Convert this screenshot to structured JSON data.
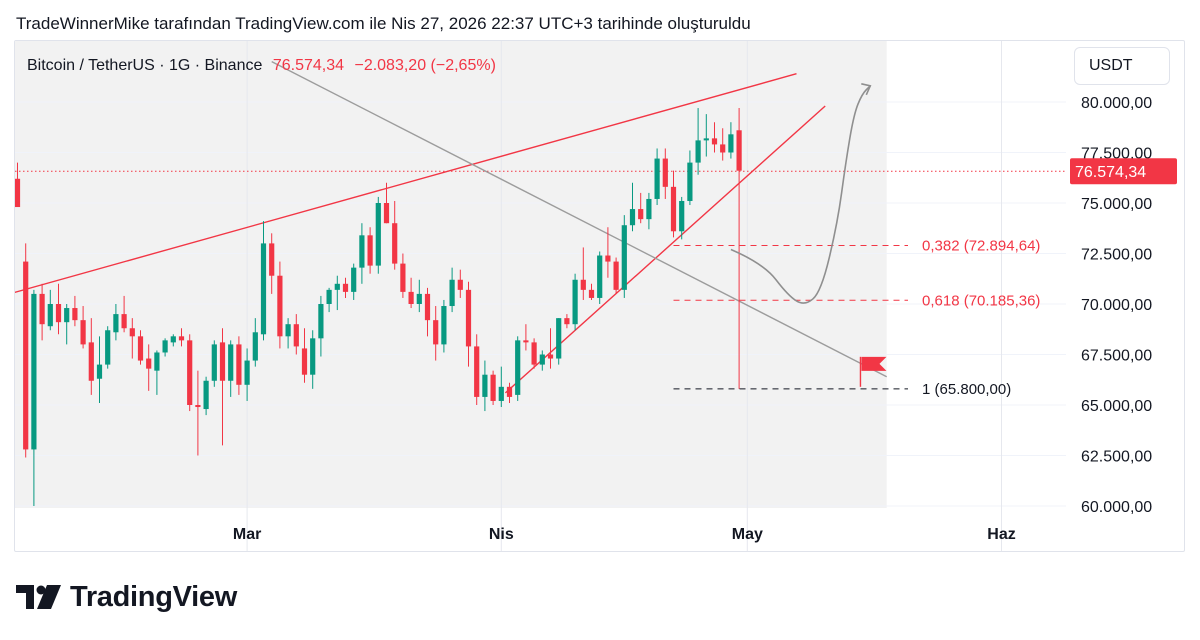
{
  "header": {
    "snapshot_note": "TradeWinnerMike tarafından TradingView.com ile Nis 27, 2026 22:37 UTC+3 tarihinde oluşturuldu"
  },
  "legend": {
    "symbol": "Bitcoin / TetherUS · 1G · Binance",
    "last": "76.574,34",
    "change": "−2.083,20 (−2,65%)"
  },
  "currency_button": "USDT",
  "brand": {
    "name": "TradingView"
  },
  "colors": {
    "up": "#089981",
    "down": "#f23645",
    "channel": "#f23645",
    "trendline": "#9c9c9c",
    "grid": "#f0f3fa"
  },
  "chart_data": {
    "type": "candlestick",
    "x_labels": [
      {
        "label": "Mar",
        "day": 28
      },
      {
        "label": "Nis",
        "day": 59
      },
      {
        "label": "May",
        "day": 89
      },
      {
        "label": "Haz",
        "day": 120
      }
    ],
    "y_ticks": [
      {
        "value": 80000,
        "label": "80.000,00"
      },
      {
        "value": 77500,
        "label": "77.500,00"
      },
      {
        "value": 75000,
        "label": "75.000,00"
      },
      {
        "value": 72500,
        "label": "72.500,00"
      },
      {
        "value": 70000,
        "label": "70.000,00"
      },
      {
        "value": 67500,
        "label": "67.500,00"
      },
      {
        "value": 65000,
        "label": "65.000,00"
      },
      {
        "value": 62500,
        "label": "62.500,00"
      },
      {
        "value": 60000,
        "label": "60.000,00"
      }
    ],
    "ylim": [
      59900,
      81900
    ],
    "xlim": [
      0,
      126
    ],
    "price_tag": {
      "value": 76574.34,
      "label": "76.574,34"
    },
    "fib_levels": [
      {
        "value": 72894.64,
        "label": "0,382 (72.894,64)",
        "style": "red"
      },
      {
        "value": 70185.36,
        "label": "0,618 (70.185,36)",
        "style": "red"
      },
      {
        "value": 65800.0,
        "label": "1 (65.800,00)",
        "style": "black"
      }
    ],
    "candles": [
      [
        0,
        76200,
        77000,
        74800,
        74800
      ],
      [
        1,
        72100,
        73000,
        62400,
        62800
      ],
      [
        2,
        62800,
        70700,
        60000,
        70500
      ],
      [
        3,
        70500,
        71000,
        68200,
        69000
      ],
      [
        4,
        68900,
        70700,
        68700,
        70000
      ],
      [
        5,
        70000,
        71000,
        68500,
        69100
      ],
      [
        6,
        69100,
        70000,
        68000,
        69800
      ],
      [
        7,
        69800,
        70400,
        68900,
        69200
      ],
      [
        8,
        69200,
        69900,
        67800,
        68000
      ],
      [
        9,
        68100,
        69300,
        65500,
        66200
      ],
      [
        10,
        66300,
        68400,
        65100,
        67000
      ],
      [
        11,
        67000,
        68900,
        66800,
        68700
      ],
      [
        12,
        68600,
        70000,
        68200,
        69500
      ],
      [
        13,
        69500,
        70400,
        68600,
        68800
      ],
      [
        14,
        68800,
        69300,
        67300,
        68400
      ],
      [
        15,
        68400,
        68700,
        67000,
        67200
      ],
      [
        16,
        67300,
        68000,
        65700,
        66800
      ],
      [
        17,
        66700,
        67700,
        65500,
        67600
      ],
      [
        18,
        67600,
        68300,
        67400,
        68200
      ],
      [
        19,
        68100,
        68500,
        67900,
        68400
      ],
      [
        20,
        68400,
        68800,
        67900,
        68200
      ],
      [
        21,
        68200,
        68500,
        64700,
        65000
      ],
      [
        22,
        65000,
        66700,
        62500,
        64900
      ],
      [
        23,
        64800,
        66400,
        64500,
        66200
      ],
      [
        24,
        66200,
        68200,
        65900,
        68000
      ],
      [
        25,
        68100,
        68800,
        63000,
        66200
      ],
      [
        26,
        66200,
        68200,
        65400,
        68000
      ],
      [
        27,
        68000,
        68400,
        65500,
        66000
      ],
      [
        28,
        66000,
        67800,
        65200,
        67200
      ],
      [
        29,
        67200,
        69300,
        66900,
        68600
      ],
      [
        30,
        68500,
        74100,
        68200,
        73000
      ],
      [
        31,
        73000,
        73500,
        70500,
        71400
      ],
      [
        32,
        71400,
        72100,
        67800,
        68400
      ],
      [
        33,
        68400,
        69300,
        67800,
        69000
      ],
      [
        34,
        69000,
        69500,
        67500,
        67900
      ],
      [
        35,
        67800,
        68800,
        66100,
        66500
      ],
      [
        36,
        66500,
        68700,
        65800,
        68300
      ],
      [
        37,
        68300,
        70400,
        67400,
        70000
      ],
      [
        38,
        70000,
        70800,
        69600,
        70700
      ],
      [
        39,
        70700,
        71400,
        69700,
        71000
      ],
      [
        40,
        71000,
        71300,
        70300,
        70600
      ],
      [
        41,
        70600,
        72000,
        70200,
        71800
      ],
      [
        42,
        71800,
        74000,
        71000,
        73400
      ],
      [
        43,
        73400,
        73800,
        71500,
        71900
      ],
      [
        44,
        71900,
        75300,
        71500,
        75000
      ],
      [
        45,
        75000,
        76000,
        74000,
        74000
      ],
      [
        46,
        74000,
        75100,
        71700,
        72000
      ],
      [
        47,
        72000,
        72500,
        70300,
        70600
      ],
      [
        48,
        70600,
        71300,
        69800,
        70000
      ],
      [
        49,
        70000,
        71200,
        69600,
        70500
      ],
      [
        50,
        70500,
        70800,
        68400,
        69200
      ],
      [
        51,
        69200,
        69900,
        67200,
        68000
      ],
      [
        52,
        68000,
        70200,
        67600,
        69900
      ],
      [
        53,
        69900,
        71800,
        69600,
        71200
      ],
      [
        54,
        71200,
        71700,
        70300,
        70700
      ],
      [
        55,
        70700,
        71100,
        66900,
        67900
      ],
      [
        56,
        67900,
        68500,
        65000,
        65400
      ],
      [
        57,
        65400,
        67200,
        64700,
        66500
      ],
      [
        58,
        66500,
        66700,
        65000,
        65200
      ],
      [
        59,
        65200,
        66900,
        64900,
        65900
      ],
      [
        60,
        65900,
        66100,
        65100,
        65400
      ],
      [
        61,
        65500,
        68400,
        65200,
        68200
      ],
      [
        62,
        68200,
        69000,
        67700,
        68100
      ],
      [
        63,
        68100,
        68300,
        66800,
        67000
      ],
      [
        64,
        67000,
        67700,
        66700,
        67500
      ],
      [
        65,
        67500,
        68800,
        66800,
        67300
      ],
      [
        66,
        67300,
        69300,
        67000,
        69300
      ],
      [
        67,
        69300,
        69500,
        68800,
        69000
      ],
      [
        68,
        69000,
        71500,
        68700,
        71200
      ],
      [
        69,
        71200,
        72800,
        70200,
        70700
      ],
      [
        70,
        70700,
        71000,
        70200,
        70300
      ],
      [
        71,
        70300,
        72600,
        70000,
        72400
      ],
      [
        72,
        72400,
        73800,
        71300,
        72100
      ],
      [
        73,
        72100,
        72300,
        70500,
        70700
      ],
      [
        74,
        70700,
        74400,
        70300,
        73900
      ],
      [
        75,
        73900,
        76000,
        73600,
        74700
      ],
      [
        76,
        74700,
        75500,
        74000,
        74200
      ],
      [
        77,
        74200,
        75500,
        73700,
        75200
      ],
      [
        78,
        75200,
        77700,
        74900,
        77200
      ],
      [
        79,
        77200,
        77700,
        75200,
        75800
      ],
      [
        80,
        75800,
        76600,
        73300,
        73600
      ],
      [
        81,
        73600,
        75300,
        73200,
        75100
      ],
      [
        82,
        75100,
        77600,
        74900,
        77000
      ],
      [
        83,
        77000,
        79700,
        76400,
        78100
      ],
      [
        84,
        78100,
        79400,
        77300,
        78200
      ],
      [
        85,
        78200,
        79000,
        77500,
        77900
      ],
      [
        86,
        77900,
        78700,
        77100,
        77500
      ],
      [
        87,
        77500,
        79000,
        77200,
        78400
      ],
      [
        88,
        78600,
        79700,
        65800,
        76600
      ]
    ],
    "trendlines": [
      {
        "name": "wedge-upper",
        "color": "red",
        "p1": [
          -1,
          70500
        ],
        "p2": [
          95,
          81400
        ]
      },
      {
        "name": "wedge-lower",
        "color": "red",
        "p1": [
          59.5,
          65600
        ],
        "p2": [
          98.5,
          79800
        ]
      },
      {
        "name": "descending-resistance",
        "color": "gray",
        "p1": [
          31,
          82000
        ],
        "p2": [
          106,
          66400
        ]
      }
    ],
    "shaded_region": {
      "x_from": -1,
      "x_to": 106,
      "y_from": 59900,
      "color": "#f2f2f2"
    },
    "projection_path": [
      [
        87,
        72700
      ],
      [
        91,
        72000
      ],
      [
        94,
        70400
      ],
      [
        96,
        69900
      ],
      [
        98,
        70600
      ],
      [
        100,
        74000
      ],
      [
        101,
        77000
      ],
      [
        102,
        79400
      ],
      [
        103,
        80400
      ],
      [
        104,
        80800
      ]
    ],
    "flag": {
      "x": 102.8,
      "y": 65900
    }
  }
}
